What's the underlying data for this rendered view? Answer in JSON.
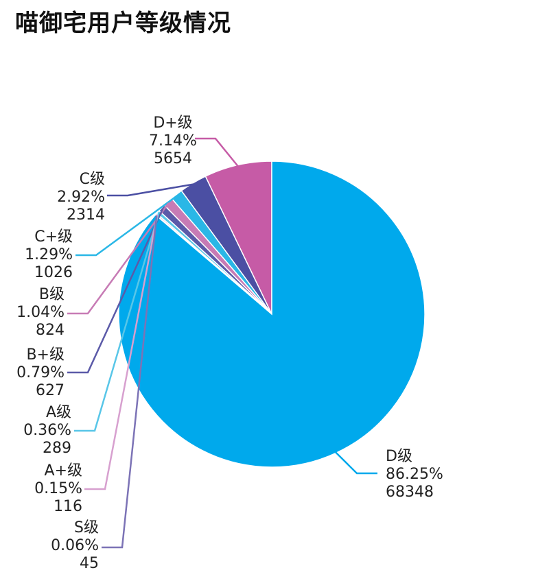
{
  "title": "喵御宅用户等级情况",
  "chart_data": {
    "type": "pie",
    "title": "喵御宅用户等级情况",
    "slices": [
      {
        "label": "D+级",
        "percent": "7.14%",
        "count": "5654",
        "value": 5654,
        "color": "#c65ba6"
      },
      {
        "label": "C级",
        "percent": "2.92%",
        "count": "2314",
        "value": 2314,
        "color": "#4b4fa3"
      },
      {
        "label": "C+级",
        "percent": "1.29%",
        "count": "1026",
        "value": 1026,
        "color": "#2ab7e6"
      },
      {
        "label": "B级",
        "percent": "1.04%",
        "count": "824",
        "value": 824,
        "color": "#c77bb5"
      },
      {
        "label": "B+级",
        "percent": "0.79%",
        "count": "627",
        "value": 627,
        "color": "#5b5aa8"
      },
      {
        "label": "A级",
        "percent": "0.36%",
        "count": "289",
        "value": 289,
        "color": "#58c6e8"
      },
      {
        "label": "A+级",
        "percent": "0.15%",
        "count": "116",
        "value": 116,
        "color": "#d7a0cf"
      },
      {
        "label": "S级",
        "percent": "0.06%",
        "count": "45",
        "value": 45,
        "color": "#7c73b6"
      },
      {
        "label": "D级",
        "percent": "86.25%",
        "count": "68348",
        "value": 68348,
        "color": "#00a9ec"
      }
    ],
    "start": "12 o'clock",
    "direction": "counterclockwise",
    "legend": "none"
  }
}
